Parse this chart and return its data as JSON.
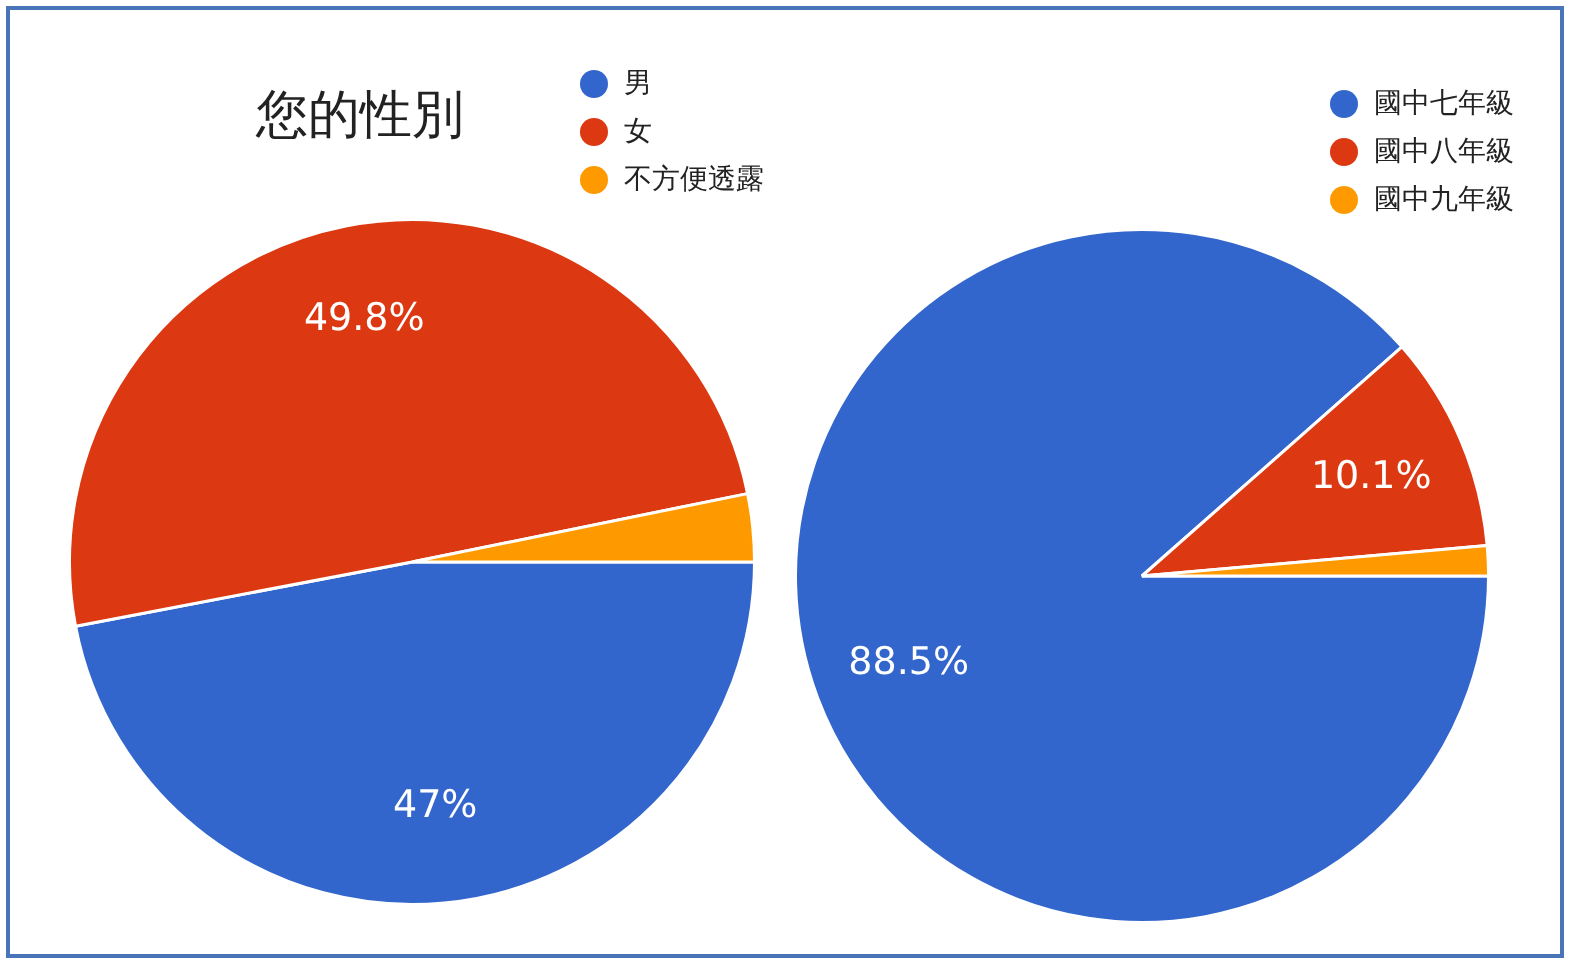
{
  "chart_data": [
    {
      "type": "pie",
      "title": "您的性別",
      "categories": [
        "男",
        "女",
        "不方便透露"
      ],
      "values": [
        47,
        49.8,
        3.2
      ],
      "colors": [
        "#3366cc",
        "#dc3912",
        "#ff9900"
      ],
      "value_labels": [
        "47%",
        "49.8%",
        null
      ],
      "legend": "top right"
    },
    {
      "type": "pie",
      "categories": [
        "國中七年級",
        "國中八年級",
        "國中九年級"
      ],
      "values": [
        88.5,
        10.1,
        1.4
      ],
      "colors": [
        "#3366cc",
        "#dc3912",
        "#ff9900"
      ],
      "value_labels": [
        "88.5%",
        "10.1%",
        null
      ],
      "legend": "top right"
    }
  ]
}
